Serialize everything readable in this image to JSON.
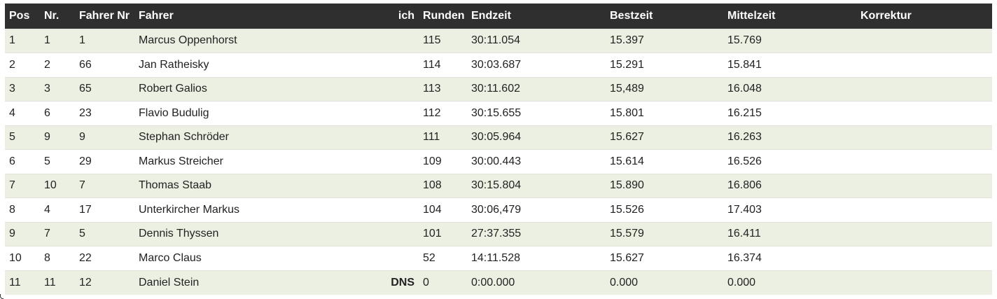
{
  "table": {
    "headers": {
      "pos": "Pos",
      "nr": "Nr.",
      "fahrer_nr": "Fahrer Nr",
      "fahrer": "Fahrer",
      "ich": "ich",
      "runden": "Runden",
      "endzeit": "Endzeit",
      "bestzeit": "Bestzeit",
      "mittelzeit": "Mittelzeit",
      "korrektur": "Korrektur"
    },
    "rows": [
      {
        "pos": "1",
        "nr": "1",
        "fahrer_nr": "1",
        "fahrer": "Marcus Oppenhorst",
        "ich": "",
        "runden": "115",
        "endzeit": "30:11.054",
        "bestzeit": "15.397",
        "mittelzeit": "15.769",
        "korrektur": ""
      },
      {
        "pos": "2",
        "nr": "2",
        "fahrer_nr": "66",
        "fahrer": "Jan Ratheisky",
        "ich": "",
        "runden": "114",
        "endzeit": "30:03.687",
        "bestzeit": "15.291",
        "mittelzeit": "15.841",
        "korrektur": ""
      },
      {
        "pos": "3",
        "nr": "3",
        "fahrer_nr": "65",
        "fahrer": "Robert Galios",
        "ich": "",
        "runden": "113",
        "endzeit": "30:11.602",
        "bestzeit": "15,489",
        "mittelzeit": "16.048",
        "korrektur": ""
      },
      {
        "pos": "4",
        "nr": "6",
        "fahrer_nr": "23",
        "fahrer": "Flavio Budulig",
        "ich": "",
        "runden": "112",
        "endzeit": "30:15.655",
        "bestzeit": "15.801",
        "mittelzeit": "16.215",
        "korrektur": ""
      },
      {
        "pos": "5",
        "nr": "9",
        "fahrer_nr": "9",
        "fahrer": "Stephan Schröder",
        "ich": "",
        "runden": "111",
        "endzeit": "30:05.964",
        "bestzeit": "15.627",
        "mittelzeit": "16.263",
        "korrektur": ""
      },
      {
        "pos": "6",
        "nr": "5",
        "fahrer_nr": "29",
        "fahrer": "Markus Streicher",
        "ich": "",
        "runden": "109",
        "endzeit": "30:00.443",
        "bestzeit": "15.614",
        "mittelzeit": "16.526",
        "korrektur": ""
      },
      {
        "pos": "7",
        "nr": "10",
        "fahrer_nr": "7",
        "fahrer": "Thomas Staab",
        "ich": "",
        "runden": "108",
        "endzeit": "30:15.804",
        "bestzeit": "15.890",
        "mittelzeit": "16.806",
        "korrektur": ""
      },
      {
        "pos": "8",
        "nr": "4",
        "fahrer_nr": "17",
        "fahrer": "Unterkircher Markus",
        "ich": "",
        "runden": "104",
        "endzeit": "30:06,479",
        "bestzeit": "15.526",
        "mittelzeit": "17.403",
        "korrektur": ""
      },
      {
        "pos": "9",
        "nr": "7",
        "fahrer_nr": "5",
        "fahrer": "Dennis Thyssen",
        "ich": "",
        "runden": "101",
        "endzeit": "27:37.355",
        "bestzeit": "15.579",
        "mittelzeit": "16.411",
        "korrektur": ""
      },
      {
        "pos": "10",
        "nr": "8",
        "fahrer_nr": "22",
        "fahrer": "Marco Claus",
        "ich": "",
        "runden": "52",
        "endzeit": "14:11.528",
        "bestzeit": "15.627",
        "mittelzeit": "16.374",
        "korrektur": ""
      },
      {
        "pos": "11",
        "nr": "11",
        "fahrer_nr": "12",
        "fahrer": "Daniel Stein",
        "ich": "DNS",
        "runden": "0",
        "endzeit": "0:00.000",
        "bestzeit": "0.000",
        "mittelzeit": "0.000",
        "korrektur": ""
      }
    ]
  },
  "colors": {
    "header_bg": "#2f2f2f",
    "row_odd": "#ecf0e2",
    "row_even": "#ffffff"
  }
}
